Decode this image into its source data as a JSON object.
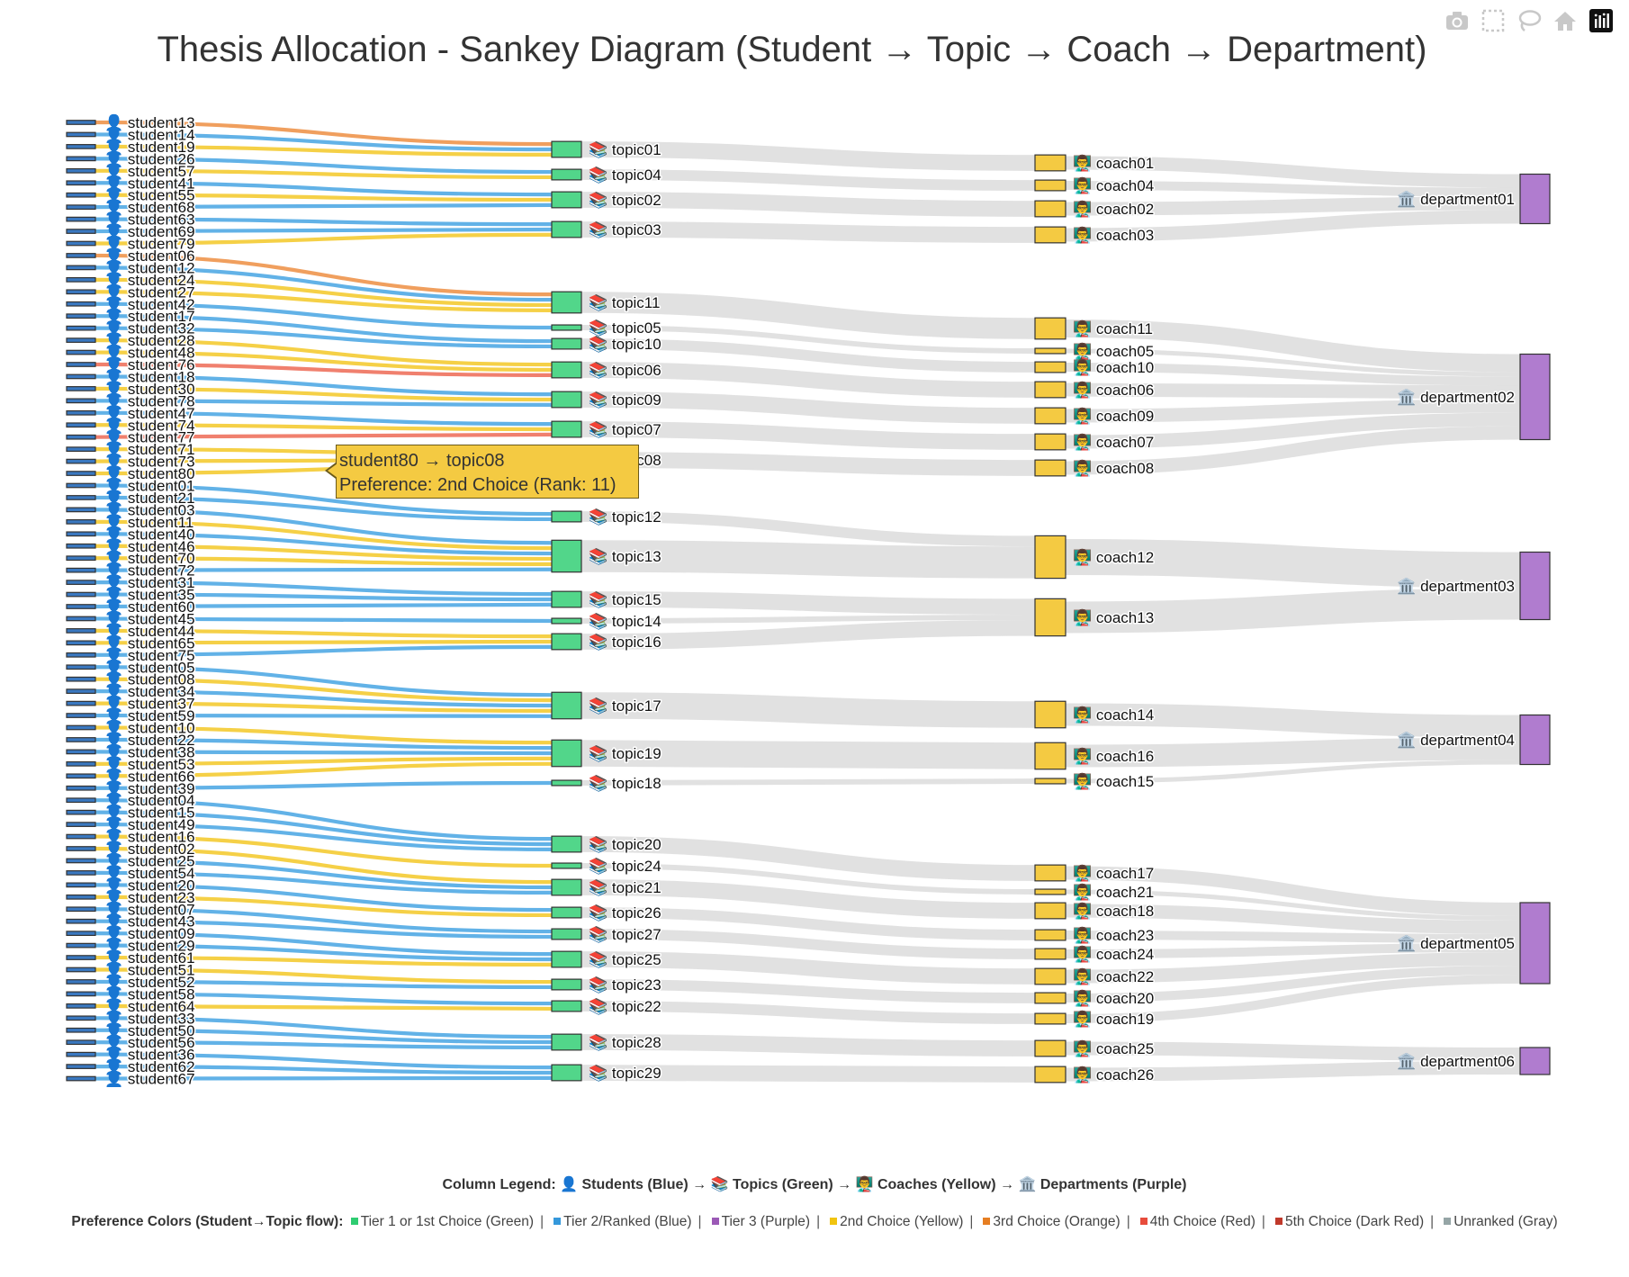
{
  "title": "Thesis Allocation - Sankey Diagram (Student → Topic → Coach → Department)",
  "toolbar": [
    {
      "icon": "camera-icon",
      "name": "download-plot-button"
    },
    {
      "icon": "box-select-icon",
      "name": "box-select-button"
    },
    {
      "icon": "lasso-icon",
      "name": "lasso-select-button"
    },
    {
      "icon": "home-icon",
      "name": "reset-axes-button"
    },
    {
      "icon": "plotly-logo-icon",
      "name": "plotly-logo-button"
    }
  ],
  "icons": {
    "student": "👤",
    "topic": "📚",
    "coach": "👨‍🏫",
    "department": "🏛️"
  },
  "colors": {
    "student_node": "#3a78c0",
    "topic_node": "#52d68a",
    "coach_node": "#f4ca42",
    "department_node": "#b07ccf",
    "tier1": "#2ecc71",
    "tier2": "#5aaee6",
    "tier3": "#9b59b6",
    "choice2": "#f4cd3d",
    "choice3": "#ef9a55",
    "choice4": "#ef7966",
    "choice5": "#c0392b",
    "unranked": "#95a5a6",
    "downstream_link": "#d9d9d9"
  },
  "tooltip": {
    "line1": "student80 → topic08",
    "line2": "Preference: 2nd Choice (Rank: 11)"
  },
  "legend": {
    "columns": "Column Legend: 👤 Students (Blue) → 📚 Topics (Green) → 👨‍🏫 Coaches (Yellow) → 🏛️ Departments (Purple)",
    "preference_title": "Preference Colors (Student→Topic flow):",
    "preference_items": [
      {
        "label": "Tier 1 or 1st Choice (Green)",
        "color": "#2ecc71"
      },
      {
        "label": "Tier 2/Ranked (Blue)",
        "color": "#3498db"
      },
      {
        "label": "Tier 3 (Purple)",
        "color": "#9b59b6"
      },
      {
        "label": "2nd Choice (Yellow)",
        "color": "#f1c40f"
      },
      {
        "label": "3rd Choice (Orange)",
        "color": "#e67e22"
      },
      {
        "label": "4th Choice (Red)",
        "color": "#e74c3c"
      },
      {
        "label": "5th Choice (Dark Red)",
        "color": "#c0392b"
      },
      {
        "label": "Unranked (Gray)",
        "color": "#95a5a6"
      }
    ]
  },
  "chart_data": {
    "type": "sankey",
    "title": "Thesis Allocation - Sankey Diagram (Student → Topic → Coach → Department)",
    "columns": [
      "Students",
      "Topics",
      "Coaches",
      "Departments"
    ],
    "students": [
      "student13",
      "student14",
      "student19",
      "student26",
      "student57",
      "student41",
      "student55",
      "student68",
      "student63",
      "student69",
      "student79",
      "student06",
      "student12",
      "student24",
      "student27",
      "student42",
      "student17",
      "student32",
      "student28",
      "student48",
      "student76",
      "student18",
      "student30",
      "student78",
      "student47",
      "student74",
      "student77",
      "student71",
      "student73",
      "student80",
      "student01",
      "student21",
      "student03",
      "student11",
      "student40",
      "student46",
      "student70",
      "student72",
      "student31",
      "student35",
      "student60",
      "student45",
      "student44",
      "student65",
      "student75",
      "student05",
      "student08",
      "student34",
      "student37",
      "student59",
      "student10",
      "student22",
      "student38",
      "student53",
      "student66",
      "student39",
      "student04",
      "student15",
      "student49",
      "student16",
      "student02",
      "student25",
      "student54",
      "student20",
      "student23",
      "student07",
      "student43",
      "student09",
      "student29",
      "student61",
      "student51",
      "student52",
      "student58",
      "student64",
      "student33",
      "student50",
      "student56",
      "student36",
      "student62",
      "student67"
    ],
    "topics": [
      "topic01",
      "topic04",
      "topic02",
      "topic03",
      "topic11",
      "topic05",
      "topic10",
      "topic06",
      "topic09",
      "topic07",
      "topic08",
      "topic12",
      "topic13",
      "topic15",
      "topic14",
      "topic16",
      "topic17",
      "topic19",
      "topic18",
      "topic20",
      "topic24",
      "topic21",
      "topic26",
      "topic27",
      "topic25",
      "topic23",
      "topic22",
      "topic28",
      "topic29"
    ],
    "coaches": [
      "coach01",
      "coach04",
      "coach02",
      "coach03",
      "coach11",
      "coach05",
      "coach10",
      "coach06",
      "coach09",
      "coach07",
      "coach08",
      "coach12",
      "coach13",
      "coach14",
      "coach16",
      "coach15",
      "coach17",
      "coach21",
      "coach18",
      "coach23",
      "coach24",
      "coach22",
      "coach20",
      "coach19",
      "coach25",
      "coach26"
    ],
    "departments": [
      "department01",
      "department02",
      "department03",
      "department04",
      "department05",
      "department06"
    ],
    "student_topic_links": [
      [
        "student13",
        "topic01",
        "choice3"
      ],
      [
        "student14",
        "topic01",
        "tier2"
      ],
      [
        "student19",
        "topic01",
        "choice2"
      ],
      [
        "student26",
        "topic04",
        "tier2"
      ],
      [
        "student57",
        "topic04",
        "choice2"
      ],
      [
        "student41",
        "topic02",
        "tier2"
      ],
      [
        "student55",
        "topic02",
        "choice2"
      ],
      [
        "student68",
        "topic02",
        "tier2"
      ],
      [
        "student63",
        "topic03",
        "tier2"
      ],
      [
        "student69",
        "topic03",
        "tier2"
      ],
      [
        "student79",
        "topic03",
        "choice2"
      ],
      [
        "student06",
        "topic11",
        "choice3"
      ],
      [
        "student12",
        "topic11",
        "tier2"
      ],
      [
        "student24",
        "topic11",
        "choice2"
      ],
      [
        "student27",
        "topic11",
        "choice2"
      ],
      [
        "student42",
        "topic05",
        "tier2"
      ],
      [
        "student17",
        "topic10",
        "tier2"
      ],
      [
        "student32",
        "topic10",
        "tier2"
      ],
      [
        "student28",
        "topic06",
        "choice2"
      ],
      [
        "student48",
        "topic06",
        "choice2"
      ],
      [
        "student76",
        "topic06",
        "choice4"
      ],
      [
        "student18",
        "topic09",
        "tier2"
      ],
      [
        "student30",
        "topic09",
        "choice2"
      ],
      [
        "student78",
        "topic09",
        "tier2"
      ],
      [
        "student47",
        "topic07",
        "tier2"
      ],
      [
        "student74",
        "topic07",
        "choice2"
      ],
      [
        "student77",
        "topic07",
        "choice4"
      ],
      [
        "student71",
        "topic08",
        "choice2"
      ],
      [
        "student73",
        "topic08",
        "choice2"
      ],
      [
        "student80",
        "topic08",
        "choice2"
      ],
      [
        "student01",
        "topic12",
        "tier2"
      ],
      [
        "student21",
        "topic12",
        "tier2"
      ],
      [
        "student03",
        "topic13",
        "tier2"
      ],
      [
        "student11",
        "topic13",
        "choice2"
      ],
      [
        "student40",
        "topic13",
        "tier2"
      ],
      [
        "student46",
        "topic13",
        "choice2"
      ],
      [
        "student70",
        "topic13",
        "choice2"
      ],
      [
        "student72",
        "topic13",
        "tier2"
      ],
      [
        "student31",
        "topic15",
        "tier2"
      ],
      [
        "student35",
        "topic15",
        "tier2"
      ],
      [
        "student60",
        "topic15",
        "tier2"
      ],
      [
        "student45",
        "topic14",
        "tier2"
      ],
      [
        "student44",
        "topic16",
        "choice2"
      ],
      [
        "student65",
        "topic16",
        "choice2"
      ],
      [
        "student75",
        "topic16",
        "tier2"
      ],
      [
        "student05",
        "topic17",
        "tier2"
      ],
      [
        "student08",
        "topic17",
        "choice2"
      ],
      [
        "student34",
        "topic17",
        "tier2"
      ],
      [
        "student37",
        "topic17",
        "choice2"
      ],
      [
        "student59",
        "topic17",
        "tier2"
      ],
      [
        "student10",
        "topic19",
        "choice2"
      ],
      [
        "student22",
        "topic19",
        "tier2"
      ],
      [
        "student38",
        "topic19",
        "tier2"
      ],
      [
        "student53",
        "topic19",
        "choice2"
      ],
      [
        "student66",
        "topic19",
        "choice2"
      ],
      [
        "student39",
        "topic18",
        "tier2"
      ],
      [
        "student04",
        "topic20",
        "tier2"
      ],
      [
        "student15",
        "topic20",
        "tier2"
      ],
      [
        "student49",
        "topic20",
        "tier2"
      ],
      [
        "student16",
        "topic24",
        "choice2"
      ],
      [
        "student02",
        "topic21",
        "choice2"
      ],
      [
        "student25",
        "topic21",
        "tier2"
      ],
      [
        "student54",
        "topic21",
        "tier2"
      ],
      [
        "student20",
        "topic26",
        "tier2"
      ],
      [
        "student23",
        "topic26",
        "choice2"
      ],
      [
        "student07",
        "topic27",
        "tier2"
      ],
      [
        "student43",
        "topic27",
        "tier2"
      ],
      [
        "student09",
        "topic25",
        "tier2"
      ],
      [
        "student29",
        "topic25",
        "tier2"
      ],
      [
        "student61",
        "topic25",
        "choice2"
      ],
      [
        "student51",
        "topic23",
        "choice2"
      ],
      [
        "student52",
        "topic23",
        "tier2"
      ],
      [
        "student58",
        "topic22",
        "tier2"
      ],
      [
        "student64",
        "topic22",
        "choice2"
      ],
      [
        "student33",
        "topic28",
        "tier2"
      ],
      [
        "student50",
        "topic28",
        "tier2"
      ],
      [
        "student56",
        "topic28",
        "tier2"
      ],
      [
        "student36",
        "topic29",
        "tier2"
      ],
      [
        "student62",
        "topic29",
        "tier2"
      ],
      [
        "student67",
        "topic29",
        "tier2"
      ]
    ],
    "topic_coach_links": [
      [
        "topic01",
        "coach01"
      ],
      [
        "topic04",
        "coach04"
      ],
      [
        "topic02",
        "coach02"
      ],
      [
        "topic03",
        "coach03"
      ],
      [
        "topic11",
        "coach11"
      ],
      [
        "topic05",
        "coach05"
      ],
      [
        "topic10",
        "coach10"
      ],
      [
        "topic06",
        "coach06"
      ],
      [
        "topic09",
        "coach09"
      ],
      [
        "topic07",
        "coach07"
      ],
      [
        "topic08",
        "coach08"
      ],
      [
        "topic12",
        "coach12"
      ],
      [
        "topic13",
        "coach12"
      ],
      [
        "topic15",
        "coach13"
      ],
      [
        "topic14",
        "coach13"
      ],
      [
        "topic16",
        "coach13"
      ],
      [
        "topic17",
        "coach14"
      ],
      [
        "topic19",
        "coach16"
      ],
      [
        "topic18",
        "coach15"
      ],
      [
        "topic20",
        "coach17"
      ],
      [
        "topic24",
        "coach21"
      ],
      [
        "topic21",
        "coach18"
      ],
      [
        "topic26",
        "coach23"
      ],
      [
        "topic27",
        "coach24"
      ],
      [
        "topic25",
        "coach22"
      ],
      [
        "topic23",
        "coach20"
      ],
      [
        "topic22",
        "coach19"
      ],
      [
        "topic28",
        "coach25"
      ],
      [
        "topic29",
        "coach26"
      ]
    ],
    "coach_department_links": [
      [
        "coach01",
        "department01"
      ],
      [
        "coach04",
        "department01"
      ],
      [
        "coach02",
        "department01"
      ],
      [
        "coach03",
        "department01"
      ],
      [
        "coach11",
        "department02"
      ],
      [
        "coach05",
        "department02"
      ],
      [
        "coach10",
        "department02"
      ],
      [
        "coach06",
        "department02"
      ],
      [
        "coach09",
        "department02"
      ],
      [
        "coach07",
        "department02"
      ],
      [
        "coach08",
        "department02"
      ],
      [
        "coach12",
        "department03"
      ],
      [
        "coach13",
        "department03"
      ],
      [
        "coach14",
        "department04"
      ],
      [
        "coach16",
        "department04"
      ],
      [
        "coach15",
        "department04"
      ],
      [
        "coach17",
        "department05"
      ],
      [
        "coach21",
        "department05"
      ],
      [
        "coach18",
        "department05"
      ],
      [
        "coach23",
        "department05"
      ],
      [
        "coach24",
        "department05"
      ],
      [
        "coach22",
        "department05"
      ],
      [
        "coach20",
        "department05"
      ],
      [
        "coach19",
        "department05"
      ],
      [
        "coach25",
        "department06"
      ],
      [
        "coach26",
        "department06"
      ]
    ]
  }
}
